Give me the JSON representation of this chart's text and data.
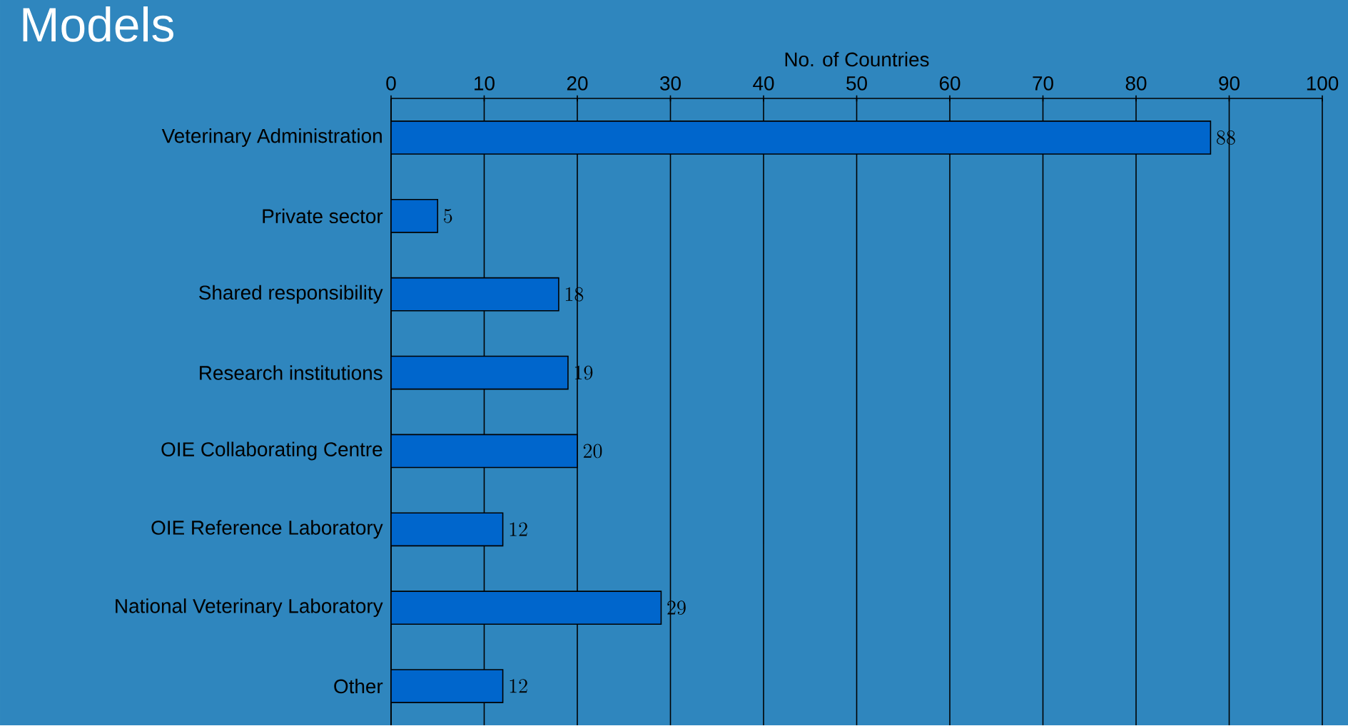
{
  "chart_data": {
    "type": "bar",
    "orientation": "horizontal",
    "title": "Models",
    "xlabel": "No. of Countries",
    "categories": [
      "Veterinary Administration",
      "Private sector",
      "Shared responsibility",
      "Research institutions",
      "OIE Collaborating Centre",
      "OIE Reference Laboratory",
      "National Veterinary Laboratory",
      "Other"
    ],
    "values": [
      88,
      5,
      18,
      19,
      20,
      12,
      29,
      12
    ],
    "color": "#0066cc",
    "xlim": [
      0,
      100
    ],
    "xticks": [
      0,
      10,
      20,
      30,
      40,
      50,
      60,
      70,
      80,
      90,
      100
    ],
    "grid": "x",
    "data_labels": true
  }
}
